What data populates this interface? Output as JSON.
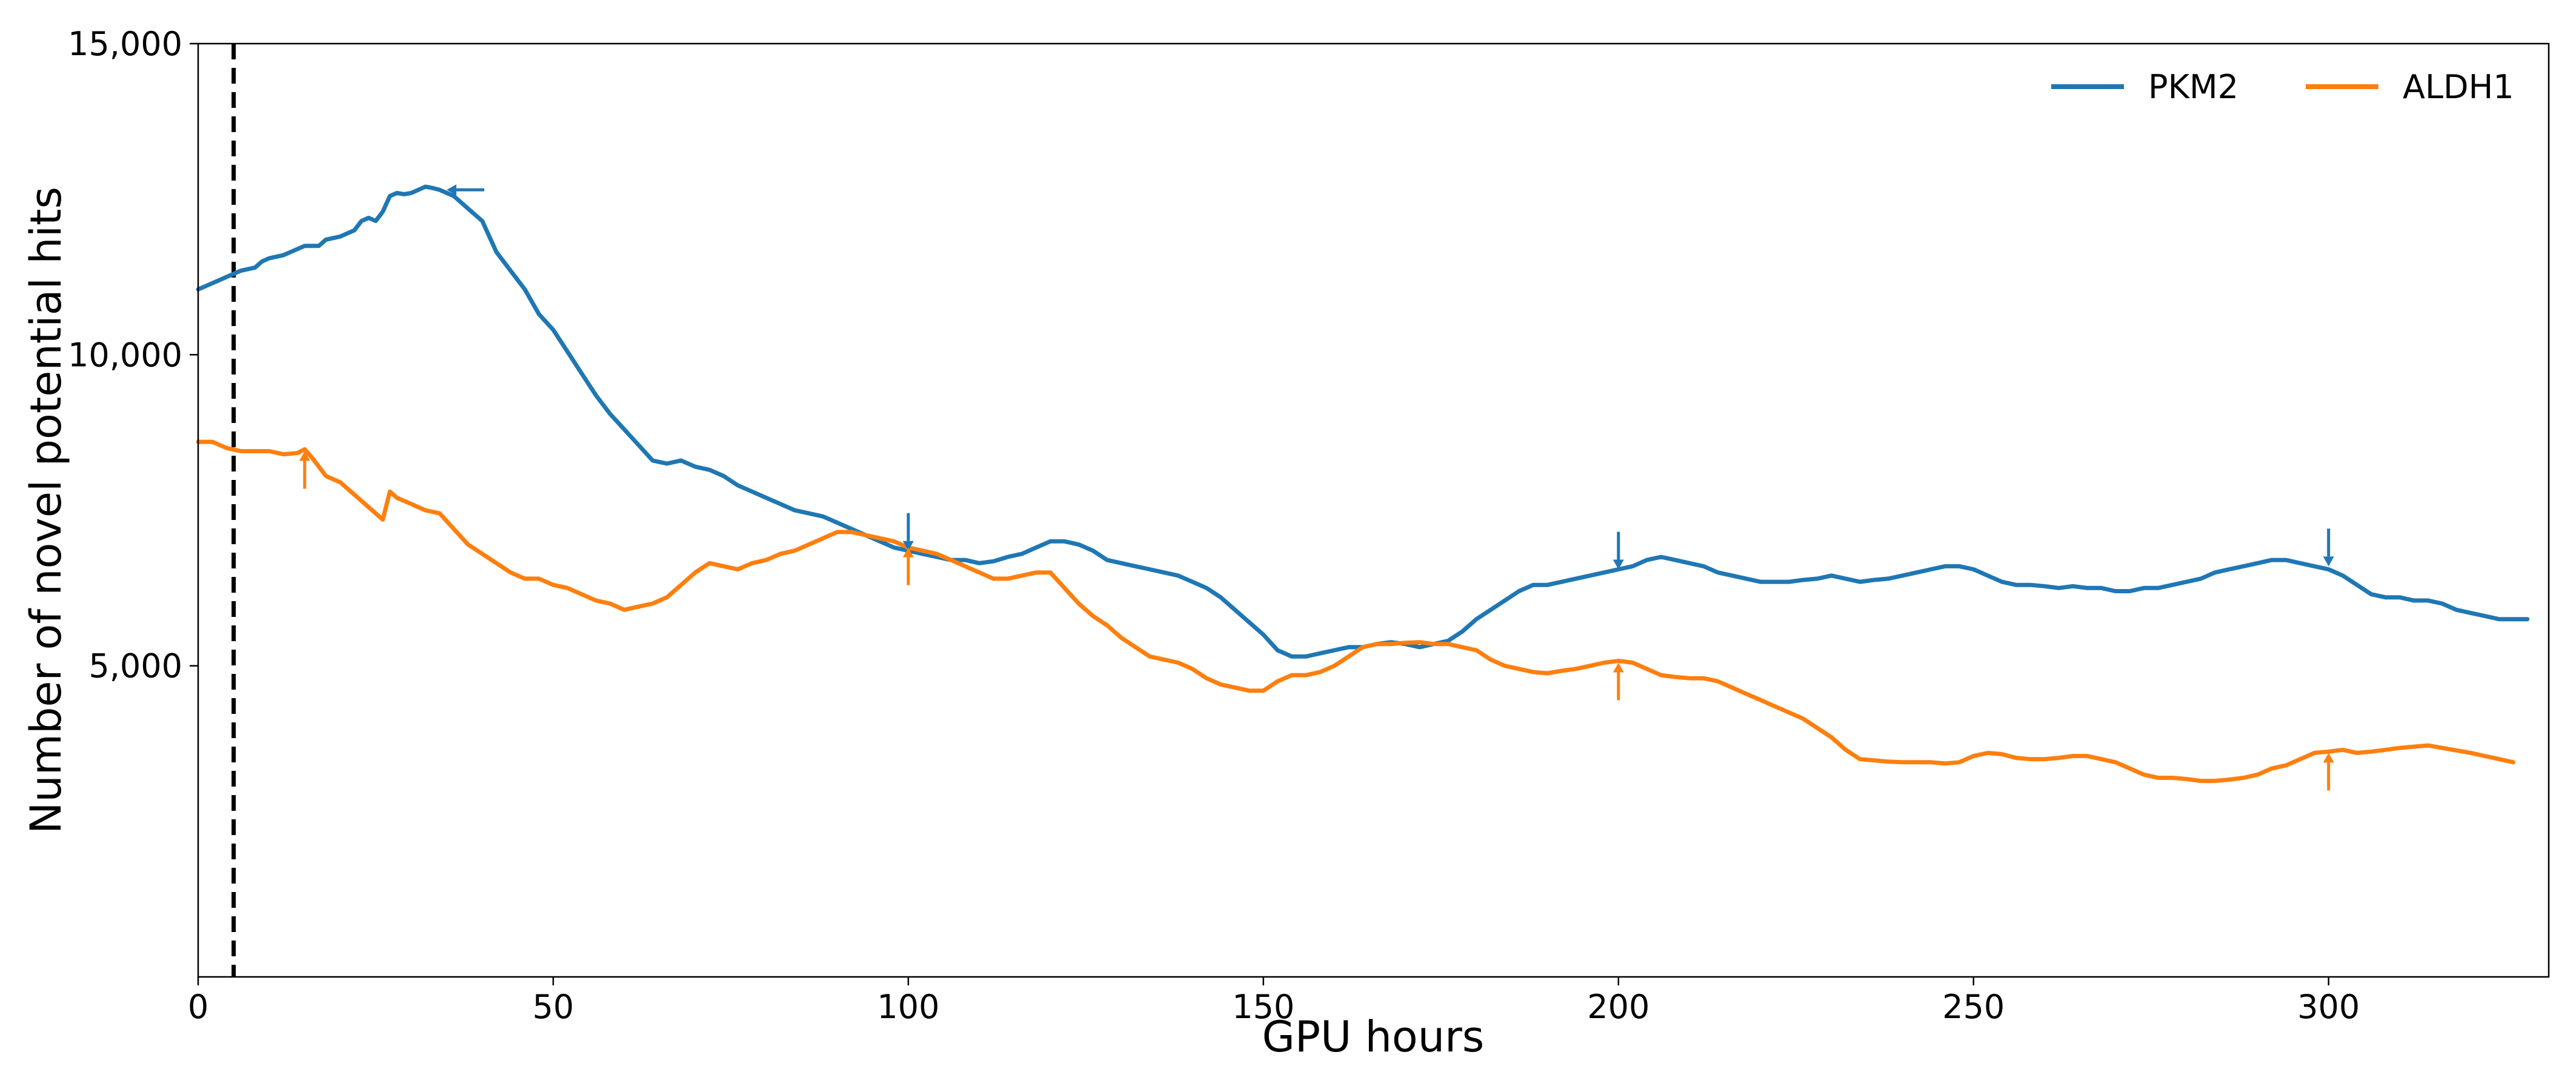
{
  "chart_data": {
    "type": "line",
    "title": "",
    "xlabel": "GPU hours",
    "ylabel": "Number of novel potential hits",
    "xlim": [
      0,
      331
    ],
    "ylim": [
      0,
      15000
    ],
    "xticks": [
      0,
      50,
      100,
      150,
      200,
      250,
      300
    ],
    "yticks": [
      5000,
      10000,
      15000
    ],
    "ytick_labels": [
      "5,000",
      "10,000",
      "15,000"
    ],
    "grid": false,
    "legend": {
      "location": "top-right",
      "columns": 2
    },
    "vline": {
      "x": 5,
      "style": "dashed",
      "color": "#000000"
    },
    "series": [
      {
        "name": "PKM2",
        "color": "#1f77b4",
        "x": [
          0,
          2,
          4,
          6,
          8,
          9,
          10,
          12,
          14,
          15,
          17,
          18,
          20,
          22,
          23,
          24,
          25,
          26,
          27,
          28,
          29,
          30,
          31,
          32,
          33,
          34,
          35,
          36,
          38,
          40,
          42,
          44,
          46,
          48,
          50,
          52,
          54,
          56,
          58,
          60,
          62,
          64,
          66,
          68,
          70,
          72,
          74,
          76,
          78,
          80,
          82,
          84,
          86,
          88,
          90,
          92,
          94,
          96,
          98,
          100,
          102,
          104,
          106,
          108,
          110,
          112,
          114,
          116,
          118,
          120,
          122,
          124,
          126,
          128,
          130,
          132,
          134,
          136,
          138,
          140,
          142,
          144,
          146,
          148,
          150,
          152,
          154,
          156,
          158,
          160,
          162,
          164,
          166,
          168,
          170,
          172,
          174,
          176,
          178,
          180,
          182,
          184,
          186,
          188,
          190,
          192,
          194,
          196,
          198,
          200,
          202,
          204,
          206,
          208,
          210,
          212,
          214,
          216,
          218,
          220,
          222,
          224,
          226,
          228,
          230,
          232,
          234,
          236,
          238,
          240,
          242,
          244,
          246,
          248,
          250,
          252,
          254,
          256,
          258,
          260,
          262,
          264,
          266,
          268,
          270,
          272,
          274,
          276,
          278,
          280,
          282,
          284,
          286,
          288,
          290,
          292,
          294,
          296,
          298,
          300,
          302,
          304,
          306,
          308,
          310,
          312,
          314,
          316,
          318,
          320,
          322,
          324,
          326,
          328
        ],
        "y": [
          11050,
          11150,
          11250,
          11350,
          11400,
          11500,
          11550,
          11600,
          11700,
          11750,
          11750,
          11850,
          11900,
          12000,
          12150,
          12200,
          12150,
          12300,
          12550,
          12600,
          12580,
          12600,
          12650,
          12700,
          12680,
          12650,
          12600,
          12550,
          12350,
          12150,
          11650,
          11350,
          11050,
          10650,
          10400,
          10050,
          9700,
          9350,
          9050,
          8800,
          8550,
          8300,
          8250,
          8300,
          8200,
          8150,
          8050,
          7900,
          7800,
          7700,
          7600,
          7500,
          7450,
          7400,
          7300,
          7200,
          7100,
          7000,
          6900,
          6850,
          6800,
          6750,
          6700,
          6700,
          6650,
          6680,
          6750,
          6800,
          6900,
          7000,
          7000,
          6950,
          6850,
          6700,
          6650,
          6600,
          6550,
          6500,
          6450,
          6350,
          6250,
          6100,
          5900,
          5700,
          5500,
          5250,
          5150,
          5150,
          5200,
          5250,
          5300,
          5300,
          5350,
          5380,
          5350,
          5300,
          5350,
          5400,
          5550,
          5750,
          5900,
          6050,
          6200,
          6300,
          6300,
          6350,
          6400,
          6450,
          6500,
          6550,
          6600,
          6700,
          6750,
          6700,
          6650,
          6600,
          6500,
          6450,
          6400,
          6350,
          6350,
          6350,
          6380,
          6400,
          6450,
          6400,
          6350,
          6380,
          6400,
          6450,
          6500,
          6550,
          6600,
          6600,
          6550,
          6450,
          6350,
          6300,
          6300,
          6280,
          6250,
          6280,
          6250,
          6250,
          6200,
          6200,
          6250,
          6250,
          6300,
          6350,
          6400,
          6500,
          6550,
          6600,
          6650,
          6700,
          6700,
          6650,
          6600,
          6550,
          6450,
          6300,
          6150,
          6100,
          6100,
          6050,
          6050,
          6000,
          5900,
          5850,
          5800,
          5750,
          5750,
          5750
        ]
      },
      {
        "name": "ALDH1",
        "color": "#ff7f0e",
        "x": [
          0,
          2,
          4,
          6,
          8,
          10,
          12,
          14,
          15,
          16,
          18,
          20,
          22,
          24,
          26,
          27,
          28,
          30,
          32,
          34,
          36,
          38,
          40,
          42,
          44,
          46,
          48,
          50,
          52,
          54,
          56,
          58,
          60,
          62,
          64,
          66,
          68,
          70,
          72,
          74,
          76,
          78,
          80,
          82,
          84,
          86,
          88,
          90,
          92,
          94,
          96,
          98,
          100,
          102,
          104,
          106,
          108,
          110,
          112,
          114,
          116,
          118,
          120,
          122,
          124,
          126,
          128,
          130,
          132,
          134,
          136,
          138,
          140,
          142,
          144,
          146,
          148,
          150,
          152,
          154,
          156,
          158,
          160,
          162,
          164,
          166,
          168,
          170,
          172,
          174,
          176,
          178,
          180,
          182,
          184,
          186,
          188,
          190,
          192,
          194,
          196,
          198,
          200,
          202,
          204,
          206,
          208,
          210,
          212,
          214,
          216,
          218,
          220,
          222,
          224,
          226,
          228,
          230,
          232,
          234,
          236,
          238,
          240,
          242,
          244,
          246,
          248,
          250,
          252,
          254,
          256,
          258,
          260,
          262,
          264,
          266,
          268,
          270,
          272,
          274,
          276,
          278,
          280,
          282,
          284,
          286,
          288,
          290,
          292,
          294,
          296,
          298,
          300,
          302,
          304,
          306,
          308,
          310,
          312,
          314,
          316,
          318,
          320,
          322,
          324,
          326
        ],
        "y": [
          8600,
          8600,
          8500,
          8450,
          8450,
          8450,
          8400,
          8420,
          8480,
          8350,
          8050,
          7950,
          7750,
          7550,
          7350,
          7800,
          7700,
          7600,
          7500,
          7450,
          7200,
          6950,
          6800,
          6650,
          6500,
          6400,
          6400,
          6300,
          6250,
          6150,
          6050,
          6000,
          5900,
          5950,
          6000,
          6100,
          6300,
          6500,
          6650,
          6600,
          6550,
          6650,
          6700,
          6800,
          6850,
          6950,
          7050,
          7150,
          7150,
          7100,
          7050,
          7000,
          6900,
          6850,
          6800,
          6700,
          6600,
          6500,
          6400,
          6400,
          6450,
          6500,
          6500,
          6250,
          6000,
          5800,
          5650,
          5450,
          5300,
          5150,
          5100,
          5050,
          4950,
          4800,
          4700,
          4650,
          4600,
          4600,
          4750,
          4850,
          4850,
          4900,
          5000,
          5150,
          5300,
          5350,
          5350,
          5370,
          5380,
          5350,
          5350,
          5300,
          5250,
          5100,
          5000,
          4950,
          4900,
          4880,
          4920,
          4950,
          5000,
          5050,
          5080,
          5050,
          4950,
          4850,
          4820,
          4800,
          4800,
          4750,
          4650,
          4550,
          4450,
          4350,
          4250,
          4150,
          4000,
          3850,
          3650,
          3500,
          3480,
          3460,
          3450,
          3450,
          3450,
          3430,
          3450,
          3550,
          3600,
          3580,
          3520,
          3500,
          3500,
          3520,
          3550,
          3550,
          3500,
          3450,
          3350,
          3250,
          3200,
          3200,
          3180,
          3150,
          3150,
          3170,
          3200,
          3250,
          3350,
          3400,
          3500,
          3600,
          3620,
          3650,
          3600,
          3620,
          3650,
          3680,
          3700,
          3720,
          3680,
          3640,
          3600,
          3550,
          3500,
          3450
        ]
      }
    ],
    "annotations": [
      {
        "series": "PKM2",
        "x": 35,
        "y": 12650,
        "arrow": "left"
      },
      {
        "series": "PKM2",
        "x": 100,
        "y": 6850,
        "arrow": "down"
      },
      {
        "series": "PKM2",
        "x": 200,
        "y": 6550,
        "arrow": "down"
      },
      {
        "series": "PKM2",
        "x": 300,
        "y": 6600,
        "arrow": "down"
      },
      {
        "series": "ALDH1",
        "x": 15,
        "y": 8450,
        "arrow": "up"
      },
      {
        "series": "ALDH1",
        "x": 100,
        "y": 6900,
        "arrow": "up"
      },
      {
        "series": "ALDH1",
        "x": 200,
        "y": 5050,
        "arrow": "up"
      },
      {
        "series": "ALDH1",
        "x": 300,
        "y": 3600,
        "arrow": "up"
      }
    ]
  }
}
